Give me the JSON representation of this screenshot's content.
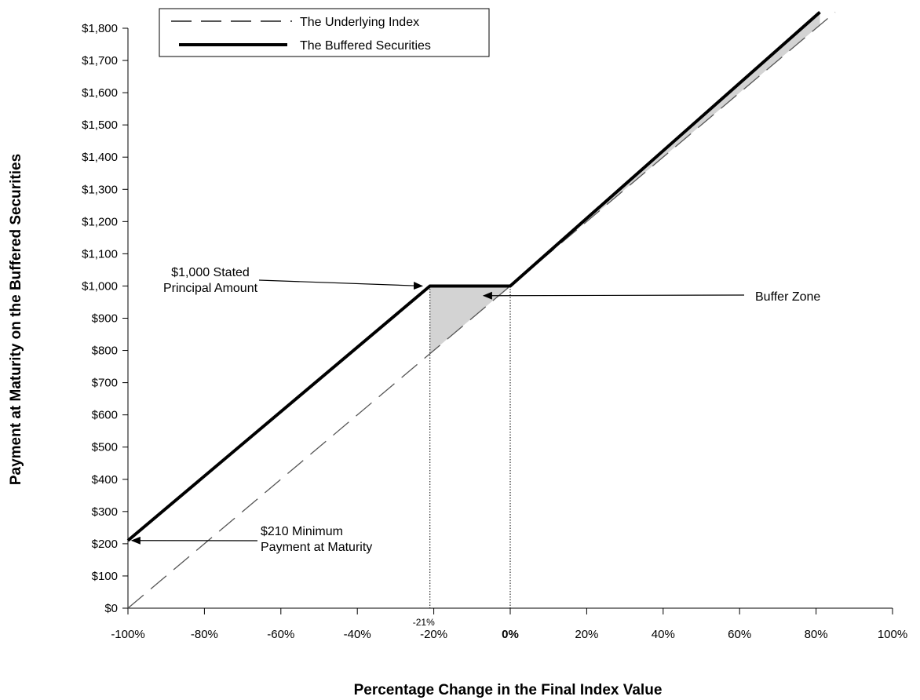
{
  "chart_data": {
    "type": "line",
    "xlabel": "Percentage Change in the Final Index Value",
    "ylabel": "Payment at Maturity on the Buffered Securities",
    "xlim": [
      -100,
      100
    ],
    "ylim": [
      0,
      1800
    ],
    "x_ticks": [
      -100,
      -80,
      -60,
      -40,
      -20,
      0,
      20,
      40,
      60,
      80,
      100
    ],
    "x_tick_labels": [
      "-100%",
      "-80%",
      "-60%",
      "-40%",
      "-20%",
      "0%",
      "20%",
      "40%",
      "60%",
      "80%",
      "100%"
    ],
    "y_ticks": [
      0,
      100,
      200,
      300,
      400,
      500,
      600,
      700,
      800,
      900,
      1000,
      1100,
      1200,
      1300,
      1400,
      1500,
      1600,
      1700,
      1800
    ],
    "y_tick_labels": [
      "$0",
      "$100",
      "$200",
      "$300",
      "$400",
      "$500",
      "$600",
      "$700",
      "$800",
      "$900",
      "$1,000",
      "$1,100",
      "$1,200",
      "$1,300",
      "$1,400",
      "$1,500",
      "$1,600",
      "$1,700",
      "$1,800"
    ],
    "series": [
      {
        "name": "The Underlying Index",
        "style": "dashed",
        "color": "#555555",
        "x": [
          -100,
          85
        ],
        "y": [
          0,
          1850
        ]
      },
      {
        "name": "The Buffered Securities",
        "style": "solid",
        "color": "#000000",
        "x": [
          -100,
          -21,
          0,
          81
        ],
        "y": [
          210,
          1000,
          1000,
          1850
        ]
      }
    ],
    "shaded_regions": [
      {
        "name": "Buffer Zone",
        "color": "#d3d3d3"
      }
    ],
    "markers": [
      {
        "x": -21,
        "label": "-21%"
      }
    ],
    "annotations": [
      {
        "lines": [
          "$1,000 Stated",
          "Principal Amount"
        ],
        "target_x": -23,
        "target_y": 1000
      },
      {
        "lines": [
          "Buffer  Zone"
        ],
        "target_x": -7,
        "target_y": 970
      },
      {
        "lines": [
          "$210 Minimum",
          "Payment at Maturity"
        ],
        "target_x": -99,
        "target_y": 210
      }
    ],
    "legend_position": "top-left",
    "grid": false
  }
}
